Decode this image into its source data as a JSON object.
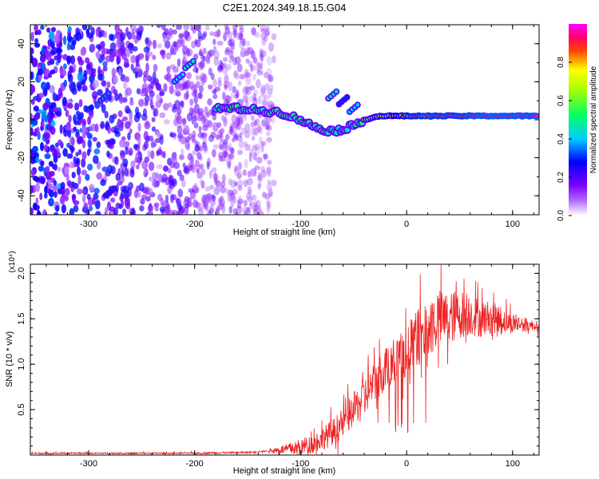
{
  "title": "C2E1.2024.349.18.15.G04",
  "chart_data": [
    {
      "type": "heatmap",
      "xlabel": "Height of straight line (km)",
      "ylabel": "Frequency (Hz)",
      "xlim": [
        -355,
        125
      ],
      "ylim": [
        -50,
        50
      ],
      "xticks": [
        -300,
        -200,
        -100,
        0,
        100
      ],
      "yticks": [
        -40,
        -20,
        0,
        20,
        40
      ],
      "xtick_labels": [
        "-300",
        "-200",
        "-100",
        "0",
        "100"
      ],
      "ytick_labels": [
        "-40",
        "-20",
        "0",
        "20",
        "40"
      ],
      "colorbar": {
        "label": "Normalized spectral amplitude",
        "range": [
          0,
          1
        ],
        "ticks": [
          0,
          0.2,
          0.4,
          0.6,
          0.8
        ],
        "tick_labels": [
          "0.0",
          "0.2",
          "0.4",
          "0.6",
          "0.8"
        ],
        "colors": [
          "#ffffff",
          "#7a00ff",
          "#0000ff",
          "#00ffff",
          "#00ff00",
          "#ffff00",
          "#ff0000",
          "#ff00ff"
        ]
      },
      "noise_region_x": [
        -355,
        -125
      ],
      "ridge": [
        {
          "x": -180,
          "y": 6,
          "v": 0.45
        },
        {
          "x": -160,
          "y": 6,
          "v": 0.5
        },
        {
          "x": -140,
          "y": 5,
          "v": 0.45
        },
        {
          "x": -120,
          "y": 4,
          "v": 0.5
        },
        {
          "x": -100,
          "y": 0,
          "v": 0.5
        },
        {
          "x": -90,
          "y": -3,
          "v": 0.45
        },
        {
          "x": -80,
          "y": -5,
          "v": 0.5
        },
        {
          "x": -70,
          "y": -6,
          "v": 0.45
        },
        {
          "x": -60,
          "y": -5,
          "v": 0.4
        },
        {
          "x": -50,
          "y": -3,
          "v": 0.45
        },
        {
          "x": -40,
          "y": 0,
          "v": 0.55
        },
        {
          "x": -25,
          "y": 2,
          "v": 0.7
        },
        {
          "x": 0,
          "y": 2,
          "v": 0.85
        },
        {
          "x": 25,
          "y": 2,
          "v": 0.9
        },
        {
          "x": 50,
          "y": 2,
          "v": 0.9
        },
        {
          "x": 75,
          "y": 2,
          "v": 0.95
        },
        {
          "x": 100,
          "y": 2,
          "v": 0.95
        },
        {
          "x": 125,
          "y": 2,
          "v": 0.95
        }
      ],
      "features": [
        {
          "x": -285,
          "y": 12,
          "v": 0.35
        },
        {
          "x": -280,
          "y": -38,
          "v": 0.3
        },
        {
          "x": -215,
          "y": 22,
          "v": 0.4
        },
        {
          "x": -205,
          "y": 29,
          "v": 0.45
        },
        {
          "x": -70,
          "y": 13,
          "v": 0.45
        },
        {
          "x": -60,
          "y": 10,
          "v": 0.3
        },
        {
          "x": -50,
          "y": 6,
          "v": 0.4
        }
      ]
    },
    {
      "type": "line",
      "xlabel": "Height of straight line (km)",
      "ylabel": "SNR (10 * v/v)",
      "y_multiplier": "(x10⁴)",
      "xlim": [
        -355,
        125
      ],
      "ylim": [
        0,
        2.1
      ],
      "xticks": [
        -300,
        -200,
        -100,
        0,
        100
      ],
      "yticks": [
        0.5,
        1.0,
        1.5,
        2.0
      ],
      "xtick_labels": [
        "-300",
        "-200",
        "-100",
        "0",
        "100"
      ],
      "ytick_labels": [
        "0.5",
        "1.0",
        "1.5",
        "2.0"
      ],
      "color": "#ee2222",
      "series": [
        {
          "x": [
            -355,
            -300,
            -250,
            -200,
            -150,
            -125,
            -100,
            -90,
            -80,
            -70,
            -60,
            -50,
            -40,
            -30,
            -20,
            -10,
            0,
            10,
            20,
            30,
            40,
            50,
            60,
            70,
            80,
            90,
            100,
            110,
            125
          ],
          "values": [
            0.02,
            0.02,
            0.02,
            0.02,
            0.03,
            0.05,
            0.08,
            0.12,
            0.18,
            0.25,
            0.35,
            0.5,
            0.65,
            0.8,
            0.95,
            1.05,
            1.15,
            1.3,
            1.4,
            1.5,
            1.5,
            1.55,
            1.55,
            1.5,
            1.52,
            1.48,
            1.45,
            1.44,
            1.42
          ]
        }
      ]
    }
  ]
}
